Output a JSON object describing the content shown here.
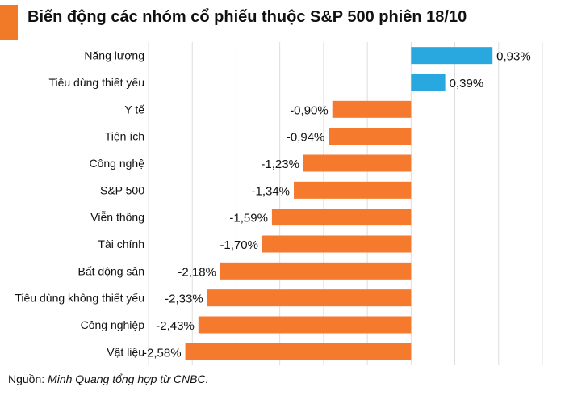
{
  "header": {
    "title": "Biến động các nhóm cổ phiếu thuộc S&P 500 phiên 18/10",
    "accent_color": "#f07a28"
  },
  "footer": {
    "source_label": "Nguồn:",
    "source_text": "Minh Quang tổng hợp từ CNBC."
  },
  "chart_data": {
    "type": "bar",
    "orientation": "horizontal",
    "title": "Biến động các nhóm cổ phiếu thuộc S&P 500 phiên 18/10",
    "categories": [
      "Năng lượng",
      "Tiêu dùng thiết yếu",
      "Y tế",
      "Tiện ích",
      "Công nghệ",
      "S&P 500",
      "Viễn thông",
      "Tài chính",
      "Bất động sản",
      "Tiêu dùng không thiết yếu",
      "Công nghiệp",
      "Vật liệu"
    ],
    "values": [
      0.93,
      0.39,
      -0.9,
      -0.94,
      -1.23,
      -1.34,
      -1.59,
      -1.7,
      -2.18,
      -2.33,
      -2.43,
      -2.58
    ],
    "value_labels": [
      "0,93%",
      "0,39%",
      "-0,90%",
      "-0,94%",
      "-1,23%",
      "-1,34%",
      "-1,59%",
      "-1,70%",
      "-2,18%",
      "-2,33%",
      "-2,43%",
      "-2,58%"
    ],
    "xlim": [
      -3,
      1.5
    ],
    "grid": true,
    "colors": {
      "positive": "#29a8e0",
      "negative": "#f57a2d",
      "grid": "#dddddd"
    }
  }
}
